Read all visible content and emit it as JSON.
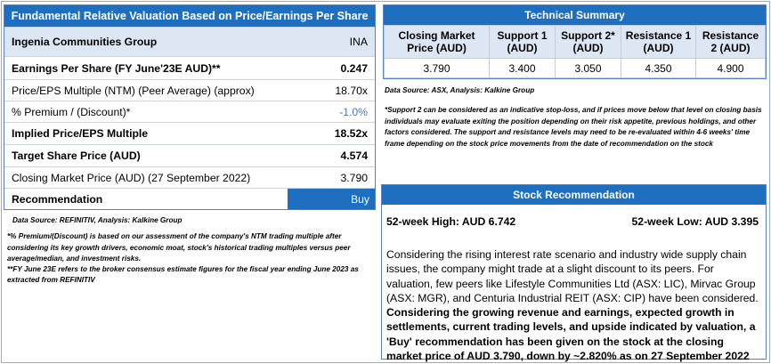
{
  "valuation": {
    "title": "Fundamental Relative Valuation Based on Price/Earnings Per Share",
    "company": {
      "label": "Ingenia Communities Group",
      "value": "INA"
    },
    "rows": [
      {
        "label": "Earnings Per Share (FY June'23E AUD)**",
        "value": "0.247"
      },
      {
        "label": "Price/EPS Multiple (NTM) (Peer Average) (approx)",
        "value": "18.70x"
      },
      {
        "label": "% Premium / (Discount)*",
        "value": "-1.0%"
      },
      {
        "label": "Implied Price/EPS Multiple",
        "value": "18.52x"
      },
      {
        "label": "Target Share Price (AUD)",
        "value": "4.574"
      },
      {
        "label": "Closing Market Price (AUD) (27 September 2022)",
        "value": "3.790"
      }
    ],
    "recommendation": {
      "label": "Recommendation",
      "value": "Buy"
    },
    "source": "Data Source: REFINITIV, Analysis: Kalkine Group",
    "note1": "*% Premium/(Discount) is based on our assessment of the company's NTM trading multiple after considering its key growth drivers, economic moat, stock's historical trading multiples versus peer average/median, and investment risks.",
    "note2": "**FY June 23E refers to the broker consensus estimate figures for the fiscal year ending June 2023 as extracted from REFINITIV"
  },
  "technical": {
    "title": "Technical Summary",
    "headers": [
      "Closing Market Price (AUD)",
      "Support 1 (AUD)",
      "Support 2* (AUD)",
      "Resistance 1 (AUD)",
      "Resistance 2 (AUD)"
    ],
    "values": [
      "3.790",
      "3.400",
      "3.050",
      "4.350",
      "4.900"
    ],
    "source": "Data Source: ASX, Analysis: Kalkine Group",
    "note": "*Support 2 can be considered as an indicative stop-loss, and if prices move below that level on closing basis individuals may evaluate exiting the position depending on their risk appetite, previous holdings, and other factors considered. The support and resistance levels may need to be re-evaluated within 4-6 weeks' time frame depending on the stock price movements from the date of recommendation on the stock"
  },
  "stock": {
    "title": "Stock Recommendation",
    "high": "52-week High: AUD 6.742",
    "low": "52-week Low: AUD 3.395",
    "para_plain": "Considering the rising interest rate scenario and industry wide supply chain issues, the company might trade at a slight discount to its peers. For valuation, few peers like Lifestyle Communities Ltd (ASX: LIC), Mirvac Group (ASX: MGR), and Centuria Industrial REIT (ASX: CIP) have been considered. ",
    "para_bold": "Considering the growing revenue and earnings, expected growth in settlements, current trading levels, and upside indicated by valuation, a 'Buy' recommendation has been given on the stock at the closing market price of AUD 3.790, down by ~2.820% as on 27 September 2022"
  },
  "colors": {
    "header_blue": "#1f6fc1",
    "light_blue": "#dde6f3",
    "discount_blue": "#4472c4"
  }
}
